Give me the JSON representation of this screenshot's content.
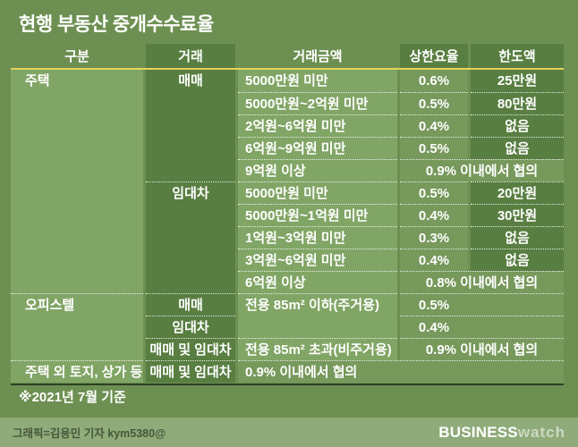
{
  "title": "현행 부동산 중개수수료율",
  "note": "※2021년 7월 기준",
  "credit": "그래픽=김용민 기자 kym5380@",
  "logo": {
    "bold": "BUSINESS",
    "light": "watch"
  },
  "colors": {
    "page_bg": "#6d9052",
    "cell_light": "#81a565",
    "cell_mid": "#77995c",
    "cell_dark": "#587e41",
    "accent_line": "#e5d35b",
    "bottom_rule": "#2e4023",
    "footer_bar": "#8fab7a",
    "footer_text": "#47573a",
    "text": "#ffffff"
  },
  "chart_data": {
    "type": "table",
    "title": "현행 부동산 중개수수료율",
    "footnote": "※2021년 7월 기준",
    "columns": [
      "구분",
      "거래",
      "거래금액",
      "상한요율",
      "한도액"
    ],
    "rows": [
      [
        "주택",
        "매매",
        "5000만원 미만",
        "0.6%",
        "25만원"
      ],
      [
        "",
        "",
        "5000만원~2억원 미만",
        "0.5%",
        "80만원"
      ],
      [
        "",
        "",
        "2억원~6억원 미만",
        "0.4%",
        "없음"
      ],
      [
        "",
        "",
        "6억원~9억원 미만",
        "0.5%",
        "없음"
      ],
      [
        "",
        "",
        "9억원 이상",
        "0.9% 이내에서 협의",
        ""
      ],
      [
        "",
        "임대차",
        "5000만원 미만",
        "0.5%",
        "20만원"
      ],
      [
        "",
        "",
        "5000만원~1억원 미만",
        "0.4%",
        "30만원"
      ],
      [
        "",
        "",
        "1억원~3억원 미만",
        "0.3%",
        "없음"
      ],
      [
        "",
        "",
        "3억원~6억원 미만",
        "0.4%",
        "없음"
      ],
      [
        "",
        "",
        "6억원 이상",
        "0.8% 이내에서 협의",
        ""
      ],
      [
        "오피스텔",
        "매매",
        "전용 85m² 이하(주거용)",
        "0.5%",
        ""
      ],
      [
        "",
        "임대차",
        "",
        "0.4%",
        ""
      ],
      [
        "",
        "매매 및 임대차",
        "전용 85m² 초과(비주거용)",
        "0.9% 이내에서 협의",
        ""
      ],
      [
        "주택 외 토지, 상가 등",
        "매매 및 임대차",
        "0.9% 이내에서 협의",
        "",
        ""
      ]
    ]
  }
}
